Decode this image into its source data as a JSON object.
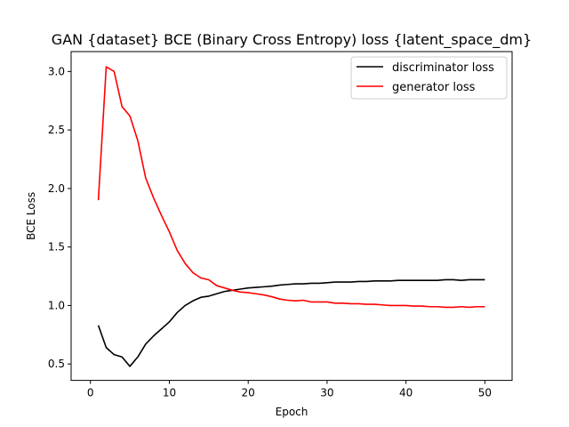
{
  "chart_data": {
    "type": "line",
    "title": "GAN {dataset} BCE (Binary Cross Entropy) loss {latent_space_dm}",
    "xlabel": "Epoch",
    "ylabel": "BCE Loss",
    "xlim": [
      -2.45,
      53.45
    ],
    "ylim": [
      0.36,
      3.17
    ],
    "xticks": [
      0,
      10,
      20,
      30,
      40,
      50
    ],
    "yticks": [
      0.5,
      1.0,
      1.5,
      2.0,
      2.5,
      3.0
    ],
    "xtick_labels": [
      "0",
      "10",
      "20",
      "30",
      "40",
      "50"
    ],
    "ytick_labels": [
      "0.5",
      "1.0",
      "1.5",
      "2.0",
      "2.5",
      "3.0"
    ],
    "grid": false,
    "legend_position": "top-right",
    "x": [
      1,
      2,
      3,
      4,
      5,
      6,
      7,
      8,
      9,
      10,
      11,
      12,
      13,
      14,
      15,
      16,
      17,
      18,
      19,
      20,
      21,
      22,
      23,
      24,
      25,
      26,
      27,
      28,
      29,
      30,
      31,
      32,
      33,
      34,
      35,
      36,
      37,
      38,
      39,
      40,
      41,
      42,
      43,
      44,
      45,
      46,
      47,
      48,
      49,
      50
    ],
    "series": [
      {
        "name": "discriminator loss",
        "color": "#000000",
        "values": [
          0.83,
          0.64,
          0.58,
          0.56,
          0.48,
          0.56,
          0.67,
          0.74,
          0.8,
          0.86,
          0.94,
          1.0,
          1.04,
          1.07,
          1.08,
          1.1,
          1.12,
          1.13,
          1.14,
          1.15,
          1.155,
          1.16,
          1.165,
          1.175,
          1.18,
          1.185,
          1.185,
          1.19,
          1.19,
          1.195,
          1.2,
          1.2,
          1.2,
          1.205,
          1.205,
          1.21,
          1.21,
          1.21,
          1.215,
          1.215,
          1.215,
          1.215,
          1.215,
          1.215,
          1.22,
          1.22,
          1.215,
          1.22,
          1.22,
          1.22
        ]
      },
      {
        "name": "generator loss",
        "color": "#ff0000",
        "values": [
          1.9,
          3.04,
          3.0,
          2.7,
          2.62,
          2.41,
          2.09,
          1.92,
          1.77,
          1.63,
          1.47,
          1.36,
          1.28,
          1.235,
          1.22,
          1.17,
          1.15,
          1.13,
          1.115,
          1.11,
          1.1,
          1.09,
          1.075,
          1.055,
          1.045,
          1.04,
          1.045,
          1.03,
          1.03,
          1.03,
          1.02,
          1.02,
          1.015,
          1.015,
          1.01,
          1.01,
          1.005,
          1.0,
          1.0,
          1.0,
          0.995,
          0.995,
          0.99,
          0.99,
          0.985,
          0.985,
          0.99,
          0.985,
          0.99,
          0.99
        ]
      }
    ]
  }
}
